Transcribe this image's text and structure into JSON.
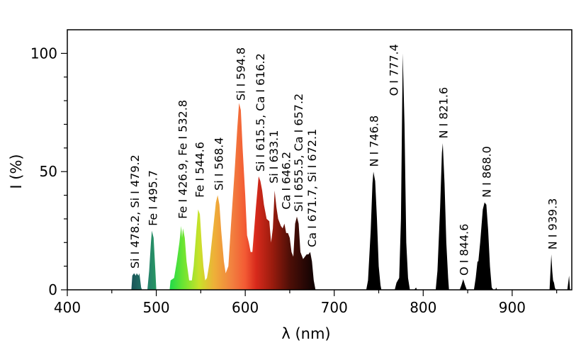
{
  "chart_data": {
    "type": "area",
    "title": "",
    "xlabel": "λ (nm)",
    "ylabel": "I (%)",
    "xlim": [
      400,
      967
    ],
    "ylim": [
      0,
      110
    ],
    "xticks": [
      400,
      500,
      600,
      700,
      800,
      900
    ],
    "yticks": [
      0,
      50,
      100
    ],
    "grid": false,
    "fill": "wavelength colour gradient (visible range), black beyond ~680 nm",
    "spectrum": [
      [
        400,
        0
      ],
      [
        472,
        0
      ],
      [
        473,
        6
      ],
      [
        475,
        7
      ],
      [
        477,
        6
      ],
      [
        478,
        7
      ],
      [
        480,
        6
      ],
      [
        481,
        7
      ],
      [
        483,
        1
      ],
      [
        484,
        0
      ],
      [
        490,
        0
      ],
      [
        492,
        8
      ],
      [
        494,
        20
      ],
      [
        495,
        25
      ],
      [
        497,
        22
      ],
      [
        499,
        8
      ],
      [
        500,
        0
      ],
      [
        515,
        0
      ],
      [
        516,
        4
      ],
      [
        520,
        5
      ],
      [
        523,
        12
      ],
      [
        526,
        20
      ],
      [
        528,
        27
      ],
      [
        529,
        22
      ],
      [
        530,
        26
      ],
      [
        532,
        22
      ],
      [
        534,
        12
      ],
      [
        537,
        4
      ],
      [
        540,
        4
      ],
      [
        542,
        10
      ],
      [
        545,
        25
      ],
      [
        547,
        34
      ],
      [
        549,
        32
      ],
      [
        551,
        20
      ],
      [
        553,
        10
      ],
      [
        555,
        4
      ],
      [
        557,
        5
      ],
      [
        560,
        12
      ],
      [
        564,
        26
      ],
      [
        567,
        37
      ],
      [
        569,
        40
      ],
      [
        571,
        36
      ],
      [
        573,
        25
      ],
      [
        576,
        12
      ],
      [
        578,
        7
      ],
      [
        581,
        10
      ],
      [
        584,
        28
      ],
      [
        588,
        50
      ],
      [
        591,
        68
      ],
      [
        593,
        79
      ],
      [
        595,
        76
      ],
      [
        597,
        60
      ],
      [
        600,
        40
      ],
      [
        602,
        23
      ],
      [
        604,
        20
      ],
      [
        606,
        16
      ],
      [
        608,
        16
      ],
      [
        612,
        35
      ],
      [
        615,
        48
      ],
      [
        617,
        46
      ],
      [
        619,
        42
      ],
      [
        621,
        36
      ],
      [
        624,
        30
      ],
      [
        627,
        29
      ],
      [
        629,
        20
      ],
      [
        631,
        26
      ],
      [
        633,
        42
      ],
      [
        635,
        35
      ],
      [
        637,
        30
      ],
      [
        640,
        27
      ],
      [
        642,
        26
      ],
      [
        644,
        28
      ],
      [
        646,
        24
      ],
      [
        648,
        24
      ],
      [
        650,
        22
      ],
      [
        652,
        16
      ],
      [
        654,
        14
      ],
      [
        656,
        28
      ],
      [
        658,
        31
      ],
      [
        660,
        28
      ],
      [
        662,
        16
      ],
      [
        665,
        13
      ],
      [
        667,
        14
      ],
      [
        669,
        15
      ],
      [
        671,
        15
      ],
      [
        673,
        16
      ],
      [
        675,
        12
      ],
      [
        677,
        4
      ],
      [
        679,
        0
      ],
      [
        736,
        0
      ],
      [
        738,
        4
      ],
      [
        741,
        25
      ],
      [
        743,
        45
      ],
      [
        744,
        50
      ],
      [
        746,
        46
      ],
      [
        748,
        30
      ],
      [
        750,
        10
      ],
      [
        752,
        2
      ],
      [
        753,
        0
      ],
      [
        768,
        0
      ],
      [
        770,
        3
      ],
      [
        773,
        5
      ],
      [
        775,
        30
      ],
      [
        777,
        100
      ],
      [
        779,
        70
      ],
      [
        781,
        20
      ],
      [
        783,
        5
      ],
      [
        785,
        0
      ],
      [
        790,
        0
      ],
      [
        792,
        1
      ],
      [
        793,
        0
      ],
      [
        814,
        0
      ],
      [
        816,
        8
      ],
      [
        819,
        35
      ],
      [
        821,
        58
      ],
      [
        822,
        62
      ],
      [
        824,
        45
      ],
      [
        826,
        20
      ],
      [
        828,
        5
      ],
      [
        829,
        0
      ],
      [
        841,
        0
      ],
      [
        843,
        2
      ],
      [
        845,
        4.5
      ],
      [
        847,
        2
      ],
      [
        849,
        0
      ],
      [
        857,
        0
      ],
      [
        859,
        5
      ],
      [
        861,
        12
      ],
      [
        862,
        12
      ],
      [
        864,
        20
      ],
      [
        867,
        34
      ],
      [
        869,
        37
      ],
      [
        871,
        36
      ],
      [
        873,
        25
      ],
      [
        875,
        10
      ],
      [
        877,
        1
      ],
      [
        879,
        0
      ],
      [
        881,
        0
      ],
      [
        882,
        1
      ],
      [
        883,
        0
      ],
      [
        942,
        0
      ],
      [
        944,
        15
      ],
      [
        945,
        8
      ],
      [
        946,
        4
      ],
      [
        947,
        3
      ],
      [
        948,
        1
      ],
      [
        949,
        0
      ],
      [
        962,
        0
      ],
      [
        964,
        6
      ],
      [
        965,
        0
      ],
      [
        967,
        0
      ]
    ],
    "gradient_stops": [
      [
        470,
        "#184f56"
      ],
      [
        490,
        "#25806c"
      ],
      [
        505,
        "#2aa45e"
      ],
      [
        515,
        "#1ed94a"
      ],
      [
        530,
        "#6be432"
      ],
      [
        548,
        "#c8e22a"
      ],
      [
        565,
        "#eeb038"
      ],
      [
        585,
        "#f2803f"
      ],
      [
        600,
        "#f35a34"
      ],
      [
        612,
        "#d82a1c"
      ],
      [
        630,
        "#9c1c0e"
      ],
      [
        650,
        "#4e0f07"
      ],
      [
        675,
        "#150404"
      ],
      [
        690,
        "#000000"
      ]
    ],
    "annotations": [
      {
        "text": "Si I 478.2, Si I 479.2",
        "x": 476,
        "y": 9
      },
      {
        "text": "Fe I 495.7",
        "x": 496.5,
        "y": 27
      },
      {
        "text": "Fe I 426.9, Fe I 532.8",
        "x": 530,
        "y": 30
      },
      {
        "text": "Fe I 544.6",
        "x": 549,
        "y": 39
      },
      {
        "text": "Si I 568.4",
        "x": 570.5,
        "y": 42
      },
      {
        "text": "Si I 594.8",
        "x": 595,
        "y": 80
      },
      {
        "text": "Si I 615.5, Ca I 616.2",
        "x": 617,
        "y": 50
      },
      {
        "text": "Si I 633.1",
        "x": 632,
        "y": 45
      },
      {
        "text": "Ca I 646.2",
        "x": 646,
        "y": 34
      },
      {
        "text": "Si I 655.5, Ca I 657.2",
        "x": 660,
        "y": 33
      },
      {
        "text": "Ca I 671.7, Si I 672.1",
        "x": 675,
        "y": 18
      },
      {
        "text": "N I 746.8",
        "x": 745,
        "y": 52
      },
      {
        "text": "O I 777.4",
        "x": 767,
        "y": 82
      },
      {
        "text": "N I 821.6",
        "x": 823,
        "y": 64
      },
      {
        "text": "O I 844.6",
        "x": 846,
        "y": 6
      },
      {
        "text": "N I 868.0",
        "x": 871.5,
        "y": 39
      },
      {
        "text": "N I 939.3",
        "x": 945.5,
        "y": 17
      }
    ]
  }
}
